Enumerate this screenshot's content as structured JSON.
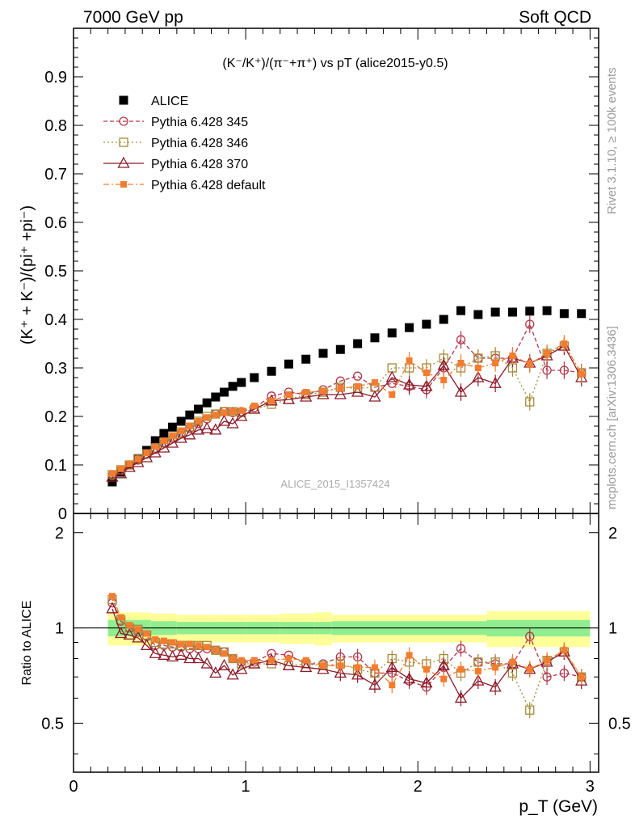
{
  "header": {
    "left": "7000 GeV pp",
    "right": "Soft QCD"
  },
  "side_labels": {
    "rivet": "Rivet 3.1.10, ≥ 100k events",
    "mcplots": "mcplots.cern.ch [arXiv:1306.3436]"
  },
  "chart_data": [
    {
      "type": "scatter",
      "title": "(K⁻/K⁺)/(π⁻+π⁺) vs pT (alice2015-y0.5)",
      "watermark": "ALICE_2015_I1357424",
      "ylabel": "(K⁺ + K⁻)/(pi⁺ +pi⁻)",
      "xlim": [
        0,
        3.05
      ],
      "ylim": [
        0,
        1.0
      ],
      "yticks": [
        "0",
        "0.1",
        "0.2",
        "0.3",
        "0.4",
        "0.5",
        "0.6",
        "0.7",
        "0.8",
        "0.9"
      ],
      "legend_position": "top-left",
      "series": [
        {
          "name": "ALICE",
          "color": "#000000",
          "marker": "filled-square",
          "x": [
            0.225,
            0.275,
            0.325,
            0.375,
            0.425,
            0.475,
            0.525,
            0.575,
            0.625,
            0.675,
            0.725,
            0.775,
            0.825,
            0.875,
            0.925,
            0.975,
            1.05,
            1.15,
            1.25,
            1.35,
            1.45,
            1.55,
            1.65,
            1.75,
            1.85,
            1.95,
            2.05,
            2.15,
            2.25,
            2.35,
            2.45,
            2.55,
            2.65,
            2.75,
            2.85,
            2.95
          ],
          "y": [
            0.065,
            0.085,
            0.1,
            0.113,
            0.13,
            0.15,
            0.165,
            0.178,
            0.19,
            0.203,
            0.215,
            0.228,
            0.24,
            0.25,
            0.262,
            0.27,
            0.28,
            0.293,
            0.308,
            0.318,
            0.33,
            0.338,
            0.35,
            0.362,
            0.372,
            0.383,
            0.39,
            0.4,
            0.418,
            0.41,
            0.415,
            0.415,
            0.417,
            0.418,
            0.412,
            0.412
          ]
        },
        {
          "name": "Pythia 6.428 345",
          "color": "#b2364a",
          "marker": "open-circle",
          "line": "dashed",
          "x": [
            0.225,
            0.275,
            0.325,
            0.375,
            0.425,
            0.475,
            0.525,
            0.575,
            0.625,
            0.675,
            0.725,
            0.775,
            0.825,
            0.875,
            0.925,
            0.975,
            1.05,
            1.15,
            1.25,
            1.35,
            1.45,
            1.55,
            1.65,
            1.75,
            1.85,
            1.95,
            2.05,
            2.15,
            2.25,
            2.35,
            2.45,
            2.55,
            2.65,
            2.75,
            2.85,
            2.95
          ],
          "y": [
            0.078,
            0.089,
            0.1,
            0.11,
            0.122,
            0.132,
            0.145,
            0.155,
            0.165,
            0.175,
            0.185,
            0.195,
            0.205,
            0.21,
            0.208,
            0.21,
            0.218,
            0.242,
            0.25,
            0.245,
            0.255,
            0.273,
            0.283,
            0.26,
            0.268,
            0.262,
            0.255,
            0.3,
            0.358,
            0.32,
            0.32,
            0.32,
            0.39,
            0.295,
            0.295,
            0.29
          ]
        },
        {
          "name": "Pythia 6.428 346",
          "color": "#a68a3a",
          "marker": "open-square",
          "line": "dotted",
          "x": [
            0.225,
            0.275,
            0.325,
            0.375,
            0.425,
            0.475,
            0.525,
            0.575,
            0.625,
            0.675,
            0.725,
            0.775,
            0.825,
            0.875,
            0.925,
            0.975,
            1.05,
            1.15,
            1.25,
            1.35,
            1.45,
            1.55,
            1.65,
            1.75,
            1.85,
            1.95,
            2.05,
            2.15,
            2.25,
            2.35,
            2.45,
            2.55,
            2.65,
            2.75,
            2.85,
            2.95
          ],
          "y": [
            0.08,
            0.09,
            0.1,
            0.112,
            0.123,
            0.135,
            0.147,
            0.158,
            0.168,
            0.178,
            0.19,
            0.2,
            0.205,
            0.21,
            0.21,
            0.208,
            0.215,
            0.225,
            0.235,
            0.245,
            0.25,
            0.26,
            0.258,
            0.26,
            0.3,
            0.3,
            0.3,
            0.32,
            0.3,
            0.32,
            0.325,
            0.3,
            0.23,
            0.33,
            0.345,
            0.29
          ]
        },
        {
          "name": "Pythia 6.428 370",
          "color": "#8b1a28",
          "marker": "open-triangle",
          "line": "solid",
          "x": [
            0.225,
            0.275,
            0.325,
            0.375,
            0.425,
            0.475,
            0.525,
            0.575,
            0.625,
            0.675,
            0.725,
            0.775,
            0.825,
            0.875,
            0.925,
            0.975,
            1.05,
            1.15,
            1.25,
            1.35,
            1.45,
            1.55,
            1.65,
            1.75,
            1.85,
            1.95,
            2.05,
            2.15,
            2.25,
            2.35,
            2.45,
            2.55,
            2.65,
            2.75,
            2.85,
            2.95
          ],
          "y": [
            0.075,
            0.082,
            0.095,
            0.105,
            0.115,
            0.125,
            0.135,
            0.145,
            0.155,
            0.162,
            0.172,
            0.175,
            0.172,
            0.19,
            0.185,
            0.2,
            0.215,
            0.232,
            0.235,
            0.24,
            0.245,
            0.245,
            0.25,
            0.24,
            0.28,
            0.265,
            0.262,
            0.305,
            0.25,
            0.28,
            0.268,
            0.32,
            0.31,
            0.325,
            0.345,
            0.28
          ]
        },
        {
          "name": "Pythia 6.428 default",
          "color": "#f47c30",
          "marker": "filled-square-small",
          "line": "dash-dot",
          "x": [
            0.225,
            0.275,
            0.325,
            0.375,
            0.425,
            0.475,
            0.525,
            0.575,
            0.625,
            0.675,
            0.725,
            0.775,
            0.825,
            0.875,
            0.925,
            0.975,
            1.05,
            1.15,
            1.25,
            1.35,
            1.45,
            1.55,
            1.65,
            1.75,
            1.85,
            1.95,
            2.05,
            2.15,
            2.25,
            2.35,
            2.45,
            2.55,
            2.65,
            2.75,
            2.85,
            2.95
          ],
          "y": [
            0.082,
            0.092,
            0.102,
            0.112,
            0.125,
            0.138,
            0.15,
            0.16,
            0.17,
            0.18,
            0.19,
            0.198,
            0.203,
            0.208,
            0.21,
            0.212,
            0.222,
            0.232,
            0.245,
            0.25,
            0.252,
            0.258,
            0.262,
            0.27,
            0.245,
            0.315,
            0.29,
            0.275,
            0.31,
            0.3,
            0.31,
            0.325,
            0.308,
            0.33,
            0.35,
            0.288
          ]
        }
      ]
    },
    {
      "type": "scatter",
      "ylabel": "Ratio to ALICE",
      "xlabel": "p_T (GeV)",
      "xlim": [
        0,
        3.05
      ],
      "ylim": [
        0.35,
        2.3
      ],
      "yticks": [
        "0.5",
        "1",
        "2"
      ],
      "xticks": [
        "0",
        "1",
        "2",
        "3"
      ],
      "reference_line": 1.0,
      "band_colors": {
        "inner": "#90ee90",
        "outer": "#ffff99"
      },
      "band": {
        "x_edges": [
          0.2,
          0.45,
          0.6,
          0.8,
          1.0,
          1.2,
          1.4,
          1.5,
          2.4,
          3.0
        ],
        "inner_half_width": [
          0.06,
          0.05,
          0.045,
          0.045,
          0.045,
          0.045,
          0.045,
          0.05,
          0.06
        ],
        "outer_half_width": [
          0.12,
          0.11,
          0.1,
          0.1,
          0.1,
          0.11,
          0.12,
          0.1,
          0.13
        ]
      },
      "series": [
        {
          "name": "Pythia 6.428 345",
          "color": "#b2364a",
          "y": [
            1.2,
            1.05,
            1.0,
            0.97,
            0.94,
            0.88,
            0.88,
            0.87,
            0.87,
            0.86,
            0.86,
            0.86,
            0.85,
            0.84,
            0.8,
            0.78,
            0.78,
            0.83,
            0.82,
            0.77,
            0.77,
            0.81,
            0.81,
            0.72,
            0.72,
            0.68,
            0.65,
            0.75,
            0.86,
            0.78,
            0.77,
            0.77,
            0.94,
            0.7,
            0.72,
            0.7
          ]
        },
        {
          "name": "Pythia 6.428 346",
          "color": "#a68a3a",
          "y": [
            1.23,
            1.06,
            1.0,
            0.99,
            0.95,
            0.9,
            0.89,
            0.89,
            0.88,
            0.88,
            0.88,
            0.88,
            0.85,
            0.84,
            0.8,
            0.77,
            0.77,
            0.77,
            0.76,
            0.77,
            0.76,
            0.77,
            0.74,
            0.72,
            0.8,
            0.78,
            0.77,
            0.8,
            0.72,
            0.78,
            0.78,
            0.72,
            0.55,
            0.79,
            0.84,
            0.7
          ]
        },
        {
          "name": "Pythia 6.428 370",
          "color": "#8b1a28",
          "y": [
            1.15,
            0.96,
            0.95,
            0.93,
            0.88,
            0.83,
            0.82,
            0.81,
            0.82,
            0.8,
            0.8,
            0.77,
            0.72,
            0.76,
            0.71,
            0.74,
            0.77,
            0.79,
            0.76,
            0.75,
            0.74,
            0.72,
            0.71,
            0.66,
            0.75,
            0.69,
            0.67,
            0.76,
            0.6,
            0.68,
            0.65,
            0.77,
            0.74,
            0.78,
            0.84,
            0.68
          ]
        },
        {
          "name": "Pythia 6.428 default",
          "color": "#f47c30",
          "y": [
            1.26,
            1.08,
            1.02,
            0.99,
            0.96,
            0.92,
            0.91,
            0.9,
            0.89,
            0.89,
            0.88,
            0.87,
            0.85,
            0.83,
            0.8,
            0.79,
            0.79,
            0.79,
            0.8,
            0.79,
            0.76,
            0.76,
            0.75,
            0.75,
            0.66,
            0.82,
            0.74,
            0.69,
            0.74,
            0.73,
            0.75,
            0.78,
            0.74,
            0.79,
            0.85,
            0.7
          ]
        }
      ]
    }
  ]
}
